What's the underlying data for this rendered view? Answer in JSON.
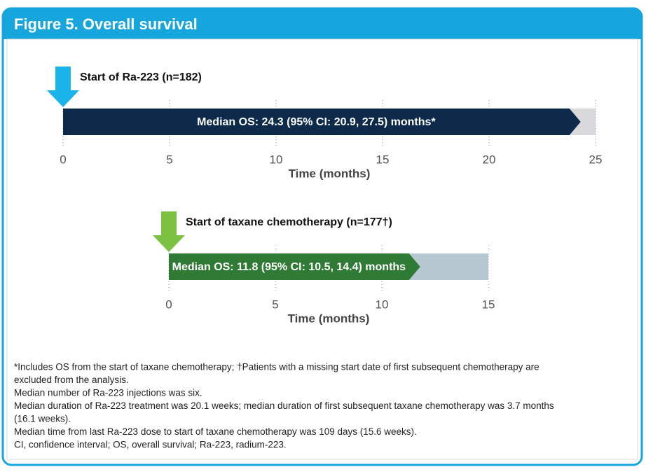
{
  "title": "Figure 5. Overall survival",
  "chart_data": [
    {
      "type": "timeline",
      "label": "Start of Ra-223 (n=182)",
      "marker_color": "#1ab4ea",
      "values": [
        24.3
      ],
      "color": "#0d2a4b",
      "track_color": "#d9d9db",
      "annotation": "Median OS: 24.3 (95% CI: 20.9, 27.5) months*",
      "xlim": [
        0,
        25
      ],
      "xticks": [
        0,
        5,
        10,
        15,
        20,
        25
      ],
      "xlabel": "Time (months)",
      "grid": true
    },
    {
      "type": "timeline",
      "label": "Start of taxane chemotherapy (n=177†)",
      "marker_color": "#7cc242",
      "values": [
        11.8
      ],
      "color": "#2f7a35",
      "track_color": "#b8c8d2",
      "annotation": "Median OS: 11.8 (95% CI: 10.5, 14.4) months",
      "xlim": [
        0,
        15
      ],
      "xticks": [
        0,
        5,
        10,
        15
      ],
      "xlabel": "Time (months)",
      "grid": true
    }
  ],
  "footnotes": [
    "*Includes OS from the start of taxane chemotherapy; †Patients with a missing start date of first subsequent chemotherapy are",
    "excluded from the analysis.",
    "Median number of Ra-223 injections was six.",
    "Median duration of Ra-223 treatment was 20.1 weeks; median duration of first subsequent taxane chemotherapy was 3.7 months",
    "(16.1 weeks).",
    "Median time from last Ra-223 dose to start of taxane chemotherapy was 109 days (15.6 weeks).",
    "CI, confidence interval; OS, overall survival; Ra-223, radium-223."
  ]
}
